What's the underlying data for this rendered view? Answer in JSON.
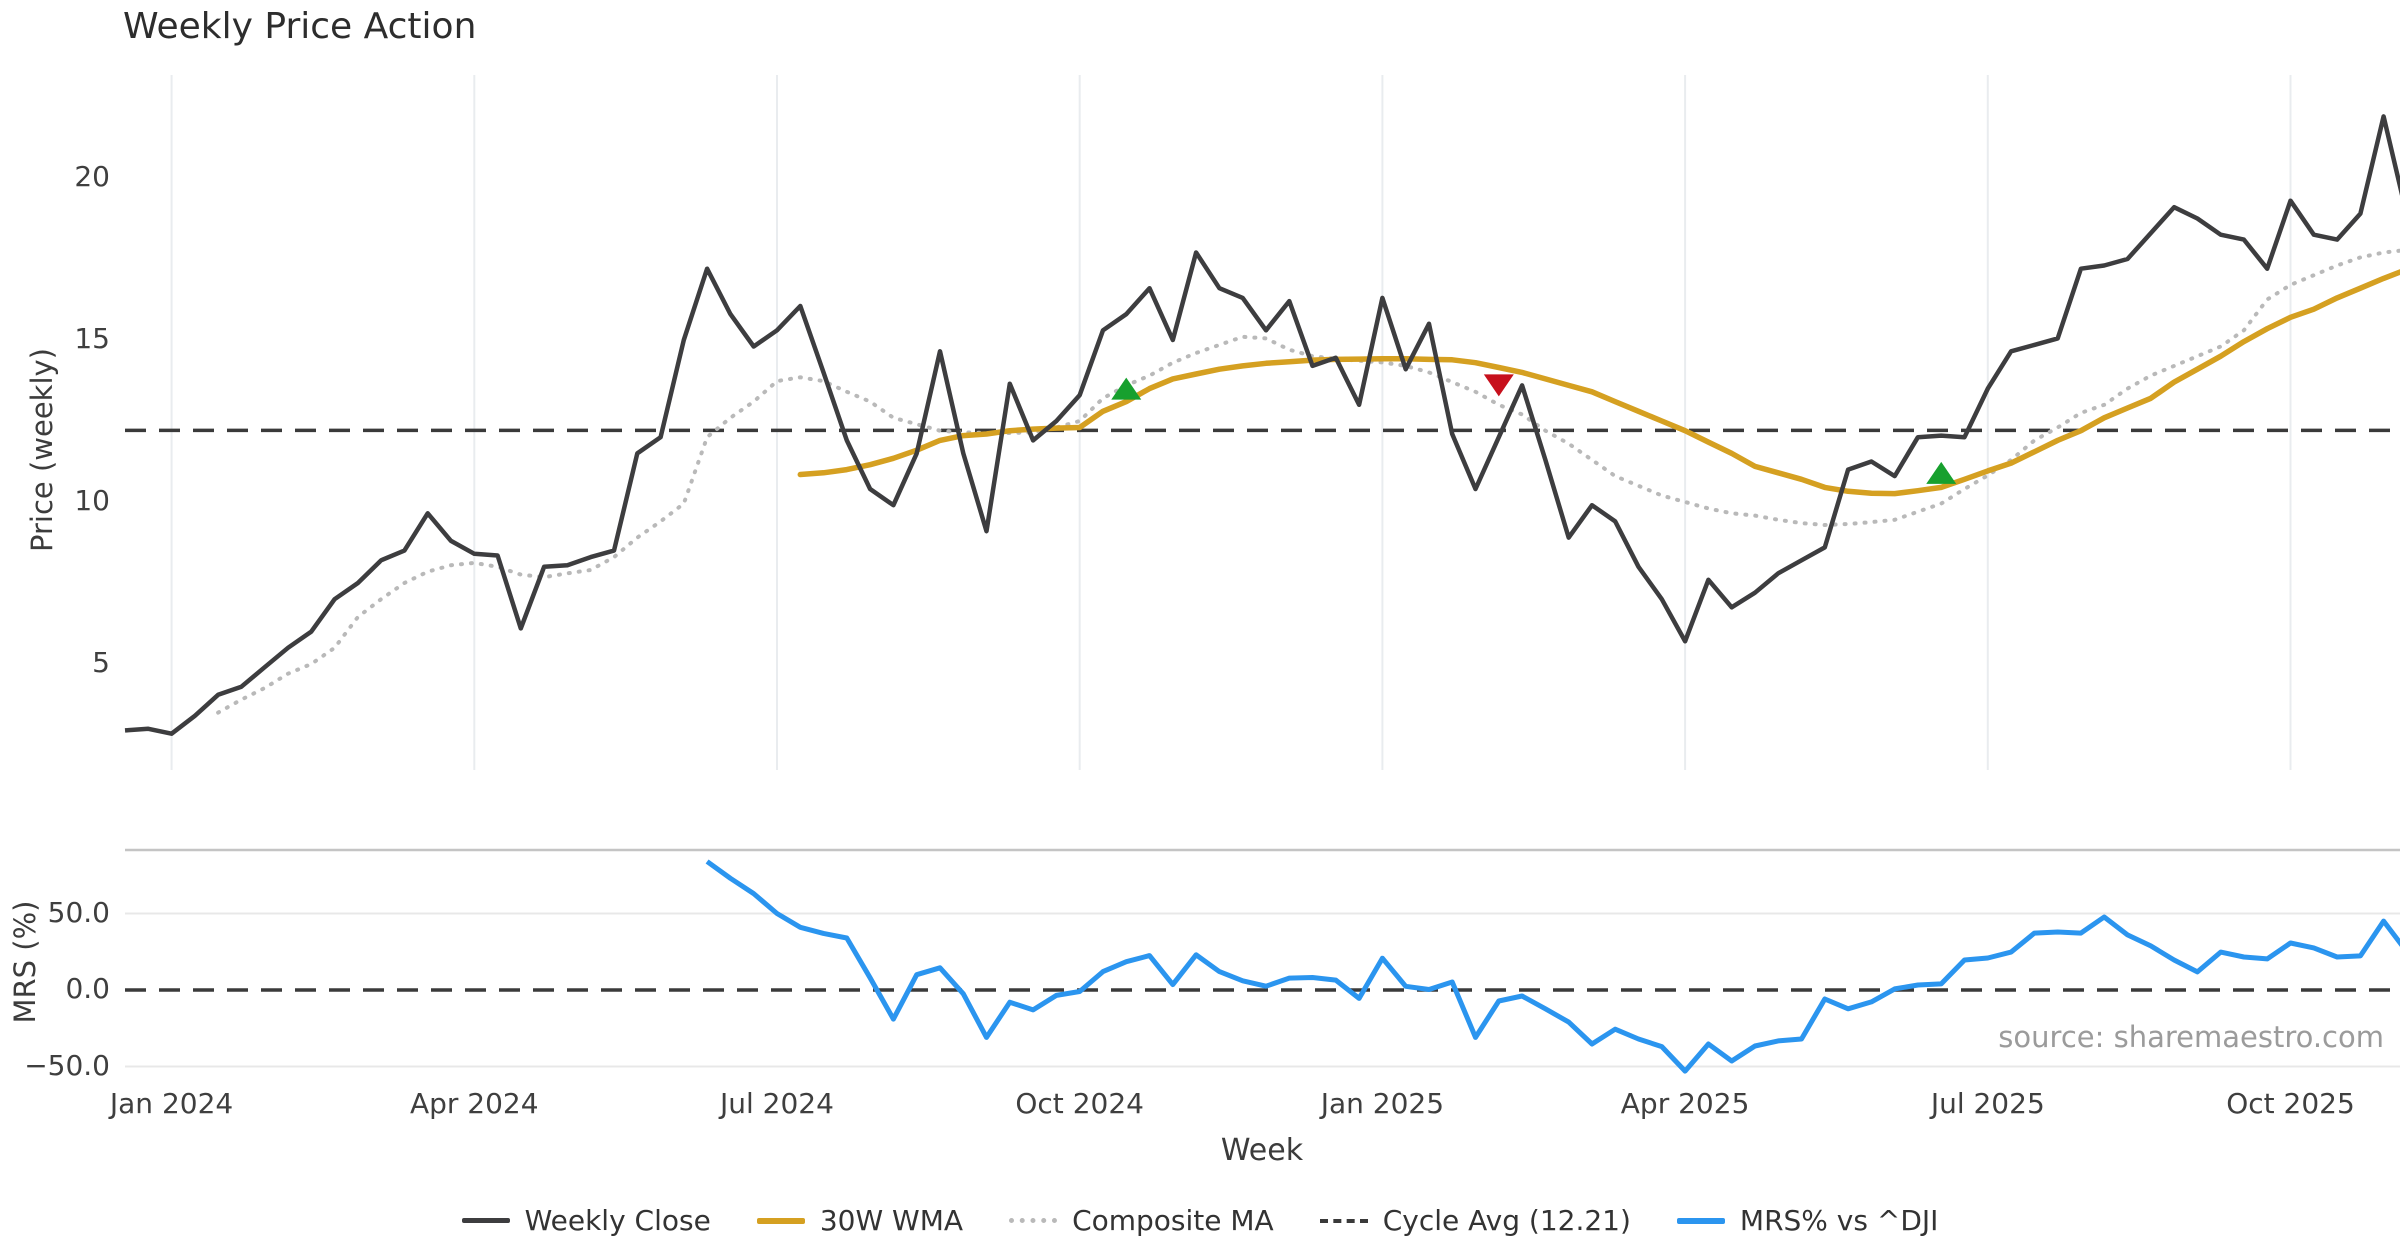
{
  "title": "Weekly Price Action",
  "xlabel": "Week",
  "source_note": "source: sharemaestro.com",
  "colors": {
    "close": "#3d3d3f",
    "wma": "#d5a021",
    "composite": "#b9b9b9",
    "cycle_dash": "#3a3a3a",
    "mrs_blue": "#2b95ef",
    "buy_green": "#17a02e",
    "sell_red": "#c7101c",
    "gridline": "#e9ecef",
    "panel_spine": "#c4c4c4",
    "mrs_gridline": "#e8e8e8",
    "tick_text": "#3f3f3f",
    "muted_text": "#9b9b9b"
  },
  "legend": {
    "items": [
      {
        "label": "Weekly Close",
        "swatch": "close"
      },
      {
        "label": "30W WMA",
        "swatch": "wma"
      },
      {
        "label": "Composite MA",
        "swatch": "comp"
      },
      {
        "label": "Cycle Avg (12.21)",
        "swatch": "cycle"
      },
      {
        "label": "MRS% vs ^DJI",
        "swatch": "mrs"
      }
    ]
  },
  "chart_data": [
    {
      "type": "line",
      "panel": "price",
      "title": "Weekly Price Action",
      "xlabel": "Week",
      "ylabel": "Price (weekly)",
      "grid": "vertical-quarters",
      "n_points": 99,
      "x_tick_idx": [
        2,
        15,
        28,
        41,
        54,
        67,
        80,
        93
      ],
      "x_ticklabels": [
        "Jan 2024",
        "Apr 2024",
        "Jul 2024",
        "Oct 2024",
        "Jan 2025",
        "Apr 2025",
        "Jul 2025",
        "Oct 2025"
      ],
      "yticks": [
        5,
        10,
        15,
        20
      ],
      "ytick_labels": [
        "5",
        "10",
        "15",
        "20"
      ],
      "ylim": [
        1.73,
        23.18
      ],
      "cycle_avg": 12.21,
      "series": [
        {
          "name": "Weekly Close",
          "style": "solid-dark",
          "start_idx": 0,
          "values": [
            2.95,
            3.0,
            2.85,
            3.4,
            4.05,
            4.3,
            4.9,
            5.5,
            6.0,
            7.0,
            7.5,
            8.2,
            8.5,
            9.65,
            8.8,
            8.4,
            8.35,
            6.1,
            8.0,
            8.05,
            8.3,
            8.5,
            11.5,
            12.0,
            15.0,
            17.2,
            15.8,
            14.8,
            15.3,
            16.05,
            14.0,
            11.9,
            10.4,
            9.9,
            11.5,
            14.65,
            11.5,
            9.1,
            13.65,
            11.9,
            12.5,
            13.3,
            15.3,
            15.8,
            16.6,
            15.0,
            17.7,
            16.6,
            16.3,
            15.3,
            16.2,
            14.2,
            14.45,
            13.0,
            16.3,
            14.1,
            15.5,
            12.1,
            10.4,
            12.0,
            13.6,
            11.3,
            8.9,
            9.9,
            9.4,
            8.0,
            7.0,
            5.7,
            7.6,
            6.75,
            7.2,
            7.8,
            8.2,
            8.6,
            11.0,
            11.25,
            10.8,
            12.0,
            12.05,
            12.0,
            13.5,
            14.65,
            14.85,
            15.05,
            17.2,
            17.3,
            17.5,
            18.3,
            19.1,
            18.75,
            18.25,
            18.1,
            17.2,
            19.3,
            18.25,
            18.1,
            18.9,
            21.9,
            18.85
          ]
        },
        {
          "name": "30W WMA",
          "style": "solid-gold",
          "start_idx": 29,
          "values": [
            10.85,
            10.9,
            11.0,
            11.15,
            11.35,
            11.6,
            11.9,
            12.05,
            12.1,
            12.2,
            12.25,
            12.28,
            12.3,
            12.8,
            13.1,
            13.5,
            13.8,
            13.95,
            14.1,
            14.2,
            14.28,
            14.33,
            14.38,
            14.4,
            14.41,
            14.42,
            14.42,
            14.4,
            14.39,
            14.3,
            14.15,
            14.0,
            13.8,
            13.6,
            13.4,
            13.1,
            12.8,
            12.5,
            12.2,
            11.85,
            11.5,
            11.1,
            10.9,
            10.7,
            10.45,
            10.33,
            10.27,
            10.26,
            10.35,
            10.45,
            10.7,
            10.96,
            11.2,
            11.55,
            11.9,
            12.2,
            12.6,
            12.9,
            13.2,
            13.7,
            14.1,
            14.5,
            14.95,
            15.35,
            15.7,
            15.95,
            16.3,
            16.6,
            16.9,
            17.18
          ]
        },
        {
          "name": "Composite MA",
          "style": "dotted-gray",
          "start_idx": 4,
          "values": [
            3.5,
            3.9,
            4.26,
            4.7,
            5.0,
            5.5,
            6.45,
            7.0,
            7.5,
            7.85,
            8.05,
            8.12,
            8.0,
            7.76,
            7.68,
            7.8,
            7.9,
            8.3,
            8.9,
            9.4,
            9.95,
            12.0,
            12.6,
            13.1,
            13.73,
            13.85,
            13.73,
            13.4,
            13.1,
            12.6,
            12.4,
            12.2,
            12.15,
            12.13,
            12.13,
            12.15,
            12.3,
            12.5,
            13.2,
            13.6,
            13.9,
            14.3,
            14.6,
            14.85,
            15.1,
            15.05,
            14.7,
            14.5,
            14.42,
            14.36,
            14.31,
            14.2,
            14.0,
            13.7,
            13.4,
            13.0,
            12.7,
            12.2,
            11.8,
            11.3,
            10.8,
            10.5,
            10.2,
            10.0,
            9.8,
            9.65,
            9.58,
            9.45,
            9.35,
            9.29,
            9.32,
            9.38,
            9.45,
            9.7,
            9.95,
            10.4,
            10.82,
            11.3,
            11.9,
            12.3,
            12.75,
            13.0,
            13.5,
            13.9,
            14.2,
            14.5,
            14.8,
            15.3,
            16.25,
            16.7,
            17.0,
            17.3,
            17.55,
            17.7,
            17.78
          ]
        },
        {
          "name": "Cycle Avg (12.21)",
          "style": "dashed-dark",
          "constant": 12.21
        }
      ],
      "markers": [
        {
          "type": "buy",
          "shape": "triangle-up",
          "idx": 43,
          "value": 13.5
        },
        {
          "type": "sell",
          "shape": "triangle-down",
          "idx": 59,
          "value": 13.6
        },
        {
          "type": "buy",
          "shape": "triangle-up",
          "idx": 78,
          "value": 10.9
        }
      ]
    },
    {
      "type": "line",
      "panel": "mrs",
      "ylabel": "MRS (%)",
      "grid": "horizontal",
      "yticks": [
        50,
        0,
        -50
      ],
      "ytick_labels": [
        "50.0",
        "0.0",
        "−50.0"
      ],
      "ylim": [
        -55.6,
        91.5
      ],
      "zero_line_dashed": true,
      "series": [
        {
          "name": "MRS% vs ^DJI",
          "style": "solid-blue",
          "start_idx": 25,
          "values": [
            84,
            73,
            63,
            50,
            41,
            37,
            34,
            8,
            -19,
            10,
            14.5,
            -2.5,
            -31,
            -8,
            -13,
            -3.5,
            -1,
            12,
            18.5,
            22.5,
            3.5,
            23,
            12,
            6,
            2.5,
            7.8,
            8.2,
            6.5,
            -5.5,
            20.8,
            2.4,
            0.3,
            5.2,
            -31,
            -7.2,
            -3.9,
            -12.3,
            -21,
            -35.3,
            -25.6,
            -32,
            -37,
            -53,
            -35.3,
            -46.4,
            -36.6,
            -33.3,
            -32,
            -5.9,
            -12.3,
            -7.8,
            0.7,
            3.3,
            4.0,
            19.6,
            20.9,
            24.8,
            37.2,
            37.9,
            37.2,
            47.7,
            36,
            28.8,
            19.6,
            11.8,
            24.8,
            21.6,
            20.3,
            30.7,
            27.5,
            21.6,
            22.3,
            45,
            25
          ]
        }
      ]
    }
  ]
}
